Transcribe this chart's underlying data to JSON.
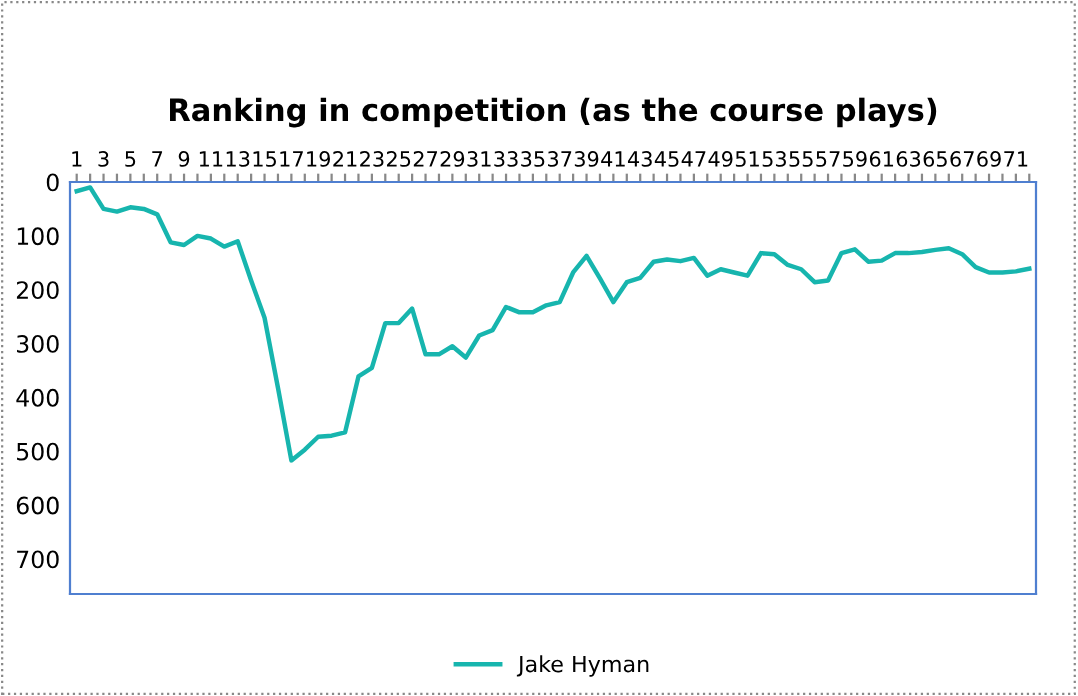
{
  "chart_data": {
    "type": "line",
    "title": "Ranking in competition (as the course plays)",
    "categories": [
      "1",
      null,
      "3",
      null,
      "5",
      null,
      "7",
      null,
      "9",
      null,
      "11",
      null,
      "13",
      null,
      "15",
      null,
      "17",
      null,
      "19",
      null,
      "21",
      null,
      "23",
      null,
      "25",
      null,
      "27",
      null,
      "29",
      null,
      "31",
      null,
      "33",
      null,
      "35",
      null,
      "37",
      null,
      "39",
      null,
      "41",
      null,
      "43",
      null,
      "45",
      null,
      "47",
      null,
      "49",
      null,
      "51",
      null,
      "53",
      null,
      "55",
      null,
      "57",
      null,
      "59",
      null,
      "61",
      null,
      "63",
      null,
      "65",
      null,
      "67",
      null,
      "69",
      null,
      "71",
      null
    ],
    "series": [
      {
        "name": "Jake Hyman",
        "color": "#17b5ae",
        "values": [
          17,
          10,
          50,
          55,
          47,
          50,
          60,
          112,
          117,
          100,
          105,
          120,
          110,
          183,
          252,
          382,
          517,
          497,
          473,
          471,
          465,
          361,
          345,
          262,
          262,
          235,
          320,
          320,
          305,
          326,
          285,
          275,
          232,
          242,
          242,
          229,
          223,
          168,
          137,
          179,
          223,
          186,
          178,
          148,
          144,
          147,
          141,
          174,
          162,
          168,
          174,
          132,
          134,
          154,
          162,
          186,
          183,
          132,
          125,
          148,
          146,
          132,
          132,
          130,
          126,
          123,
          134,
          158,
          168,
          168,
          166,
          161
        ]
      }
    ],
    "ylim": [
      765,
      0
    ],
    "yticks": [
      0,
      100,
      200,
      300,
      400,
      500,
      600,
      700
    ],
    "grid": false,
    "legend": "bottom",
    "marker": "none",
    "line_style": "solid"
  }
}
